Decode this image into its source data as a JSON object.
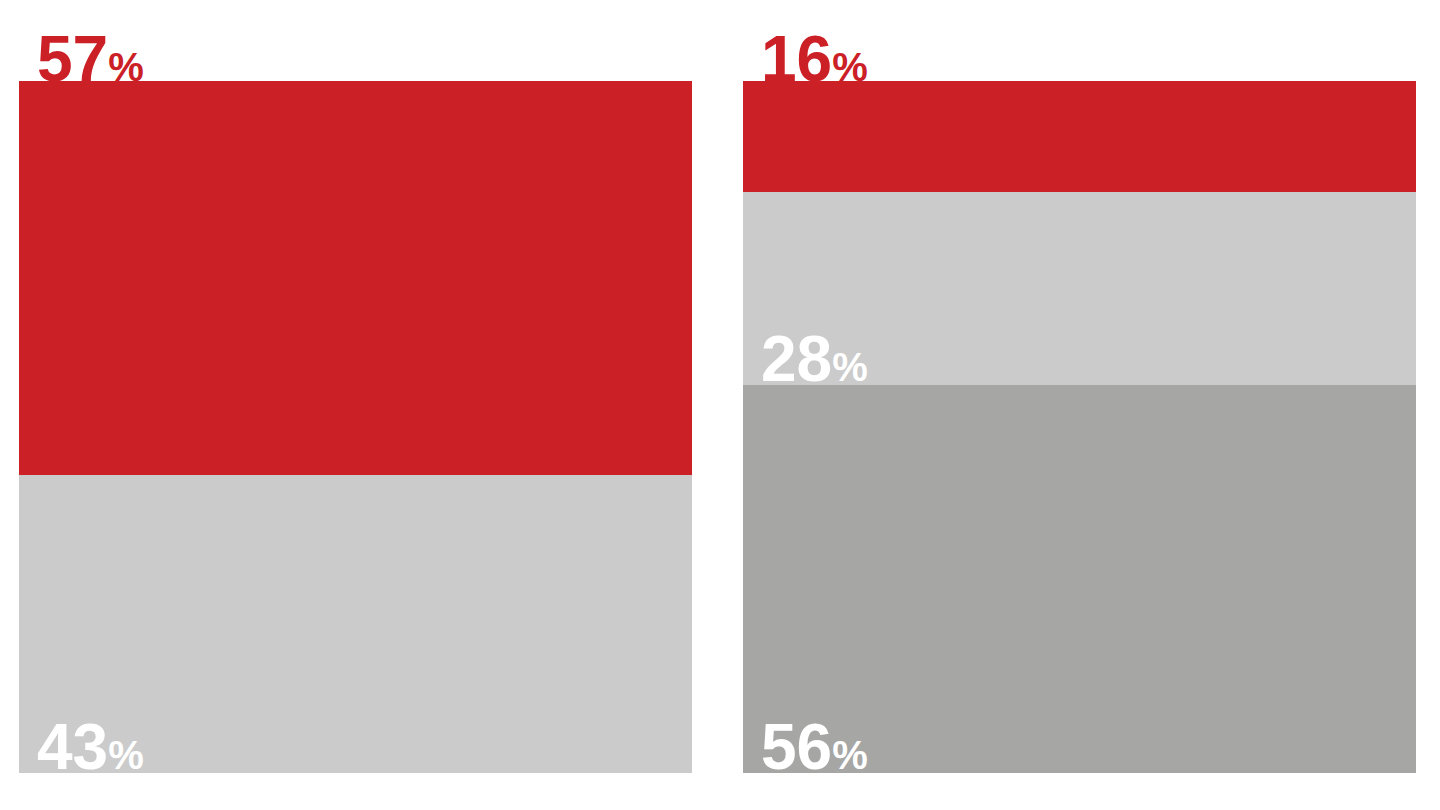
{
  "chart_data": {
    "type": "bar",
    "stacked": true,
    "categories": [
      null,
      null
    ],
    "series": [
      {
        "color": "#a6a6a5",
        "values": [
          null,
          56
        ],
        "value_labels": [
          null,
          "56%"
        ]
      },
      {
        "color": "#cbcbcb",
        "values": [
          43,
          28
        ],
        "value_labels": [
          "43%",
          "28%"
        ]
      },
      {
        "color": "#cc2027",
        "values": [
          57,
          16
        ],
        "value_labels": [
          "57%",
          "16%"
        ]
      }
    ],
    "ylim": [
      0,
      100
    ],
    "yticks": [],
    "data_labels": true,
    "tick_labels": false
  }
}
